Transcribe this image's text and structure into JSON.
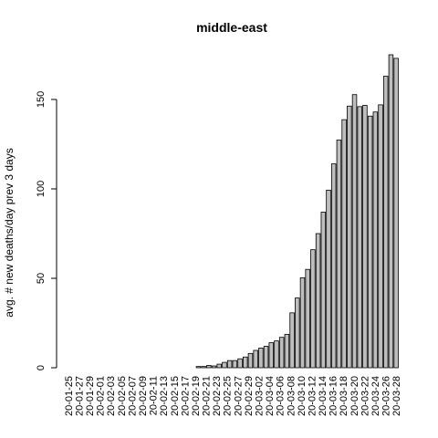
{
  "chart_data": {
    "type": "bar",
    "title": "middle-east",
    "xlabel": "",
    "ylabel": "avg. # new deaths/day prev  3  days",
    "ylim": [
      0,
      175
    ],
    "yticks": [
      0,
      50,
      100,
      150
    ],
    "grid": false,
    "bar_color": "#bebebe",
    "categories": [
      "20-01-25",
      "20-01-26",
      "20-01-27",
      "20-01-28",
      "20-01-29",
      "20-01-30",
      "20-01-31",
      "20-02-01",
      "20-02-02",
      "20-02-03",
      "20-02-04",
      "20-02-05",
      "20-02-06",
      "20-02-07",
      "20-02-08",
      "20-02-09",
      "20-02-10",
      "20-02-11",
      "20-02-12",
      "20-02-13",
      "20-02-14",
      "20-02-15",
      "20-02-16",
      "20-02-17",
      "20-02-18",
      "20-02-19",
      "20-02-20",
      "20-02-21",
      "20-02-22",
      "20-02-23",
      "20-02-24",
      "20-02-25",
      "20-02-26",
      "20-02-27",
      "20-02-28",
      "20-02-29",
      "20-03-01",
      "20-03-02",
      "20-03-03",
      "20-03-04",
      "20-03-05",
      "20-03-06",
      "20-03-07",
      "20-03-08",
      "20-03-09",
      "20-03-10",
      "20-03-11",
      "20-03-12",
      "20-03-13",
      "20-03-14",
      "20-03-15",
      "20-03-16",
      "20-03-17",
      "20-03-18",
      "20-03-19",
      "20-03-20",
      "20-03-21",
      "20-03-22",
      "20-03-23",
      "20-03-24",
      "20-03-25",
      "20-03-26",
      "20-03-27",
      "20-03-28"
    ],
    "tick_labels": [
      "20-01-25",
      "20-01-27",
      "20-01-29",
      "20-02-01",
      "20-02-03",
      "20-02-05",
      "20-02-07",
      "20-02-09",
      "20-02-11",
      "20-02-13",
      "20-02-15",
      "20-02-17",
      "20-02-19",
      "20-02-21",
      "20-02-23",
      "20-02-25",
      "20-02-27",
      "20-02-29",
      "20-03-02",
      "20-03-04",
      "20-03-06",
      "20-03-08",
      "20-03-10",
      "20-03-12",
      "20-03-14",
      "20-03-16",
      "20-03-18",
      "20-03-20",
      "20-03-22",
      "20-03-24",
      "20-03-26",
      "20-03-28"
    ],
    "values": [
      0,
      0,
      0,
      0,
      0,
      0,
      0,
      0,
      0,
      0,
      0,
      0,
      0,
      0,
      0,
      0,
      0,
      0,
      0,
      0,
      0,
      0,
      0,
      0,
      0,
      0.7,
      0.7,
      1.3,
      1,
      2,
      3,
      4,
      4,
      5,
      6,
      8,
      9.7,
      11,
      12,
      14,
      15,
      17,
      18.7,
      30.7,
      39,
      50.3,
      55,
      66,
      75,
      87,
      99.3,
      114,
      127.3,
      138.7,
      146.3,
      152.7,
      146,
      146.7,
      140.7,
      143,
      147,
      163,
      175,
      173
    ]
  }
}
